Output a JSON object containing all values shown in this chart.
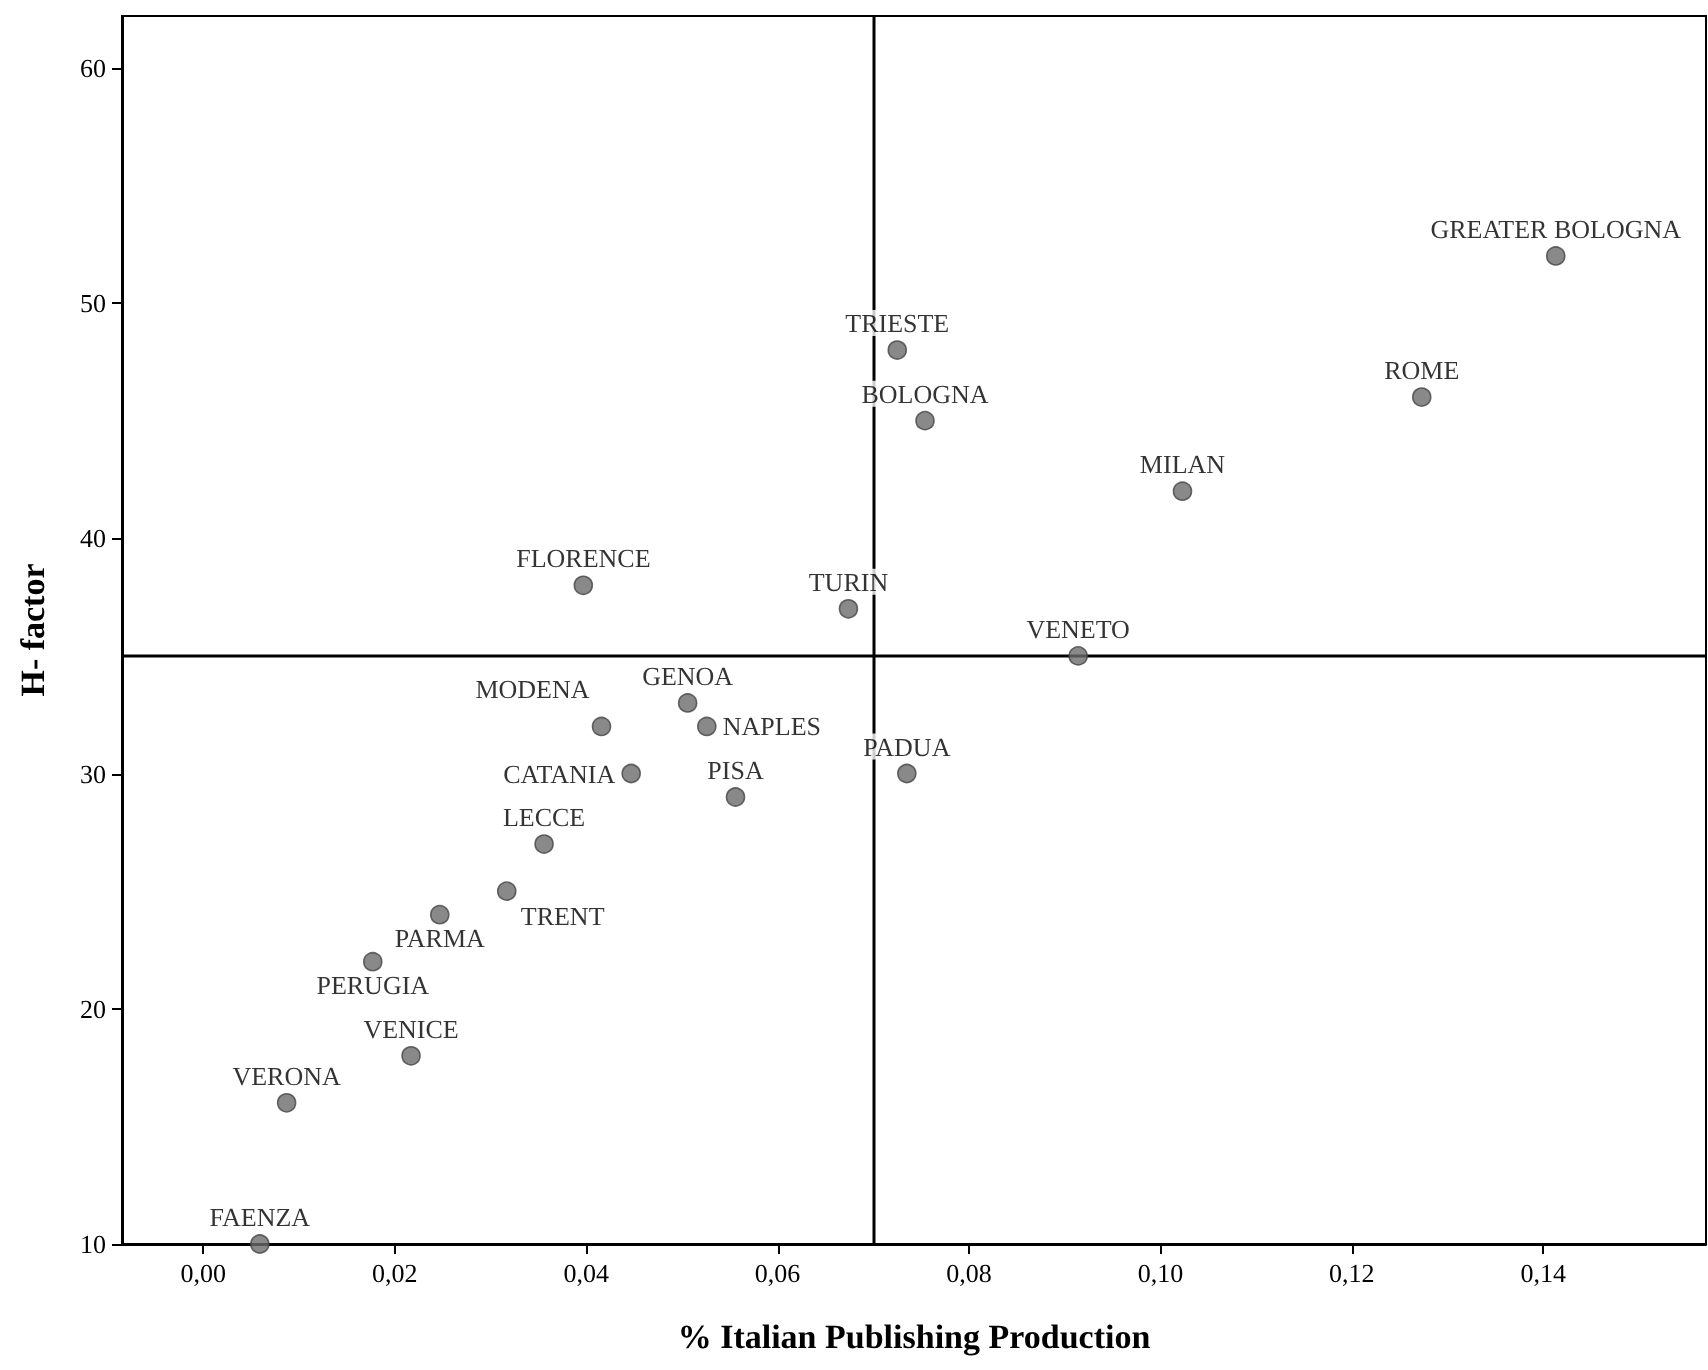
{
  "chart_data": {
    "type": "scatter",
    "xlabel": "% Italian Publishing Production",
    "ylabel": "H- factor",
    "x": [
      0.0059,
      0.0087,
      0.0217,
      0.0177,
      0.0247,
      0.0317,
      0.0356,
      0.0447,
      0.0416,
      0.0506,
      0.0526,
      0.0556,
      0.0397,
      0.0674,
      0.0735,
      0.0914,
      0.0725,
      0.0754,
      0.1023,
      0.1273,
      0.1413
    ],
    "series": [
      {
        "color": "#6b6b6b",
        "values": [
          10,
          16,
          18,
          22,
          24,
          25,
          27,
          30,
          32,
          33,
          32,
          29,
          38,
          37,
          30,
          35,
          48,
          45,
          42,
          46,
          52
        ]
      }
    ],
    "annotations": [
      {
        "text": "FAENZA",
        "x": 0.0059,
        "y": 10
      },
      {
        "text": "VERONA",
        "x": 0.0087,
        "y": 16
      },
      {
        "text": "VENICE",
        "x": 0.0217,
        "y": 18
      },
      {
        "text": "PERUGIA",
        "x": 0.0177,
        "y": 22
      },
      {
        "text": "PARMA",
        "x": 0.0247,
        "y": 24
      },
      {
        "text": "TRENT",
        "x": 0.0317,
        "y": 25
      },
      {
        "text": "LECCE",
        "x": 0.0356,
        "y": 27
      },
      {
        "text": "CATANIA",
        "x": 0.0447,
        "y": 30
      },
      {
        "text": "MODENA",
        "x": 0.0416,
        "y": 32
      },
      {
        "text": "GENOA",
        "x": 0.0506,
        "y": 33
      },
      {
        "text": "NAPLES",
        "x": 0.0526,
        "y": 32
      },
      {
        "text": "PISA",
        "x": 0.0556,
        "y": 29
      },
      {
        "text": "FLORENCE",
        "x": 0.0397,
        "y": 38
      },
      {
        "text": "TURIN",
        "x": 0.0674,
        "y": 37
      },
      {
        "text": "PADUA",
        "x": 0.0735,
        "y": 30
      },
      {
        "text": "VENETO",
        "x": 0.0914,
        "y": 35
      },
      {
        "text": "TRIESTE",
        "x": 0.0725,
        "y": 48
      },
      {
        "text": "BOLOGNA",
        "x": 0.0754,
        "y": 45
      },
      {
        "text": "MILAN",
        "x": 0.1023,
        "y": 42
      },
      {
        "text": "ROME",
        "x": 0.1273,
        "y": 46
      },
      {
        "text": "GREATER BOLOGNA",
        "x": 0.1413,
        "y": 52
      }
    ],
    "xlim": [
      -0.0085,
      0.157
    ],
    "ylim": [
      10,
      62.2
    ],
    "xticks": [
      {
        "value": 0,
        "label": "0,00"
      },
      {
        "value": 0.02,
        "label": "0,02"
      },
      {
        "value": 0.04,
        "label": "0,04"
      },
      {
        "value": 0.06,
        "label": "0,06"
      },
      {
        "value": 0.08,
        "label": "0,08"
      },
      {
        "value": 0.1,
        "label": "0,10"
      },
      {
        "value": 0.12,
        "label": "0,12"
      },
      {
        "value": 0.14,
        "label": "0,14"
      }
    ],
    "yticks": [
      10,
      20,
      30,
      40,
      50,
      60
    ],
    "ref_lines": [
      {
        "axis": "x",
        "value": 0.07,
        "color": "#000000"
      },
      {
        "axis": "y",
        "value": 35,
        "color": "#000000"
      }
    ],
    "grid": false,
    "marker": "circle"
  }
}
